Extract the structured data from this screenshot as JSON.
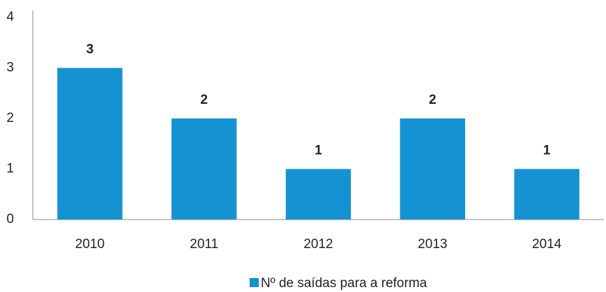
{
  "chart_data": {
    "type": "bar",
    "categories": [
      "2010",
      "2011",
      "2012",
      "2013",
      "2014"
    ],
    "series": [
      {
        "name": "Nº de saídas para a reforma",
        "color": "#1592d2",
        "values": [
          3,
          2,
          1,
          2,
          1
        ]
      }
    ],
    "ylim": [
      0,
      4
    ],
    "yticks": [
      0,
      1,
      2,
      3,
      4
    ],
    "grid": false,
    "data_labels": true,
    "legend": "bottom"
  }
}
